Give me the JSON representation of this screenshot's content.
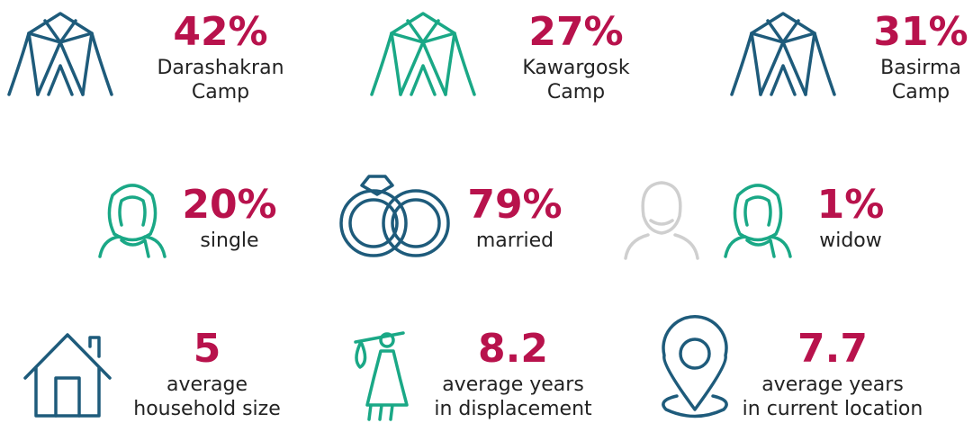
{
  "rows": [
    {
      "items": [
        {
          "value": "42%",
          "label": [
            "Darashakran",
            "Camp"
          ]
        },
        {
          "value": "27%",
          "label": [
            "Kawargosk",
            "Camp"
          ]
        },
        {
          "value": "31%",
          "label": [
            "Basirma",
            "Camp"
          ]
        }
      ]
    },
    {
      "items": [
        {
          "value": "20%",
          "label": [
            "single"
          ]
        },
        {
          "value": "79%",
          "label": [
            "married"
          ]
        },
        {
          "value": "1%",
          "label": [
            "widow"
          ]
        }
      ]
    },
    {
      "items": [
        {
          "value": "5",
          "label": [
            "average",
            "household size"
          ]
        },
        {
          "value": "8.2",
          "label": [
            "average years",
            "in displacement"
          ]
        },
        {
          "value": "7.7",
          "label": [
            "average years",
            "in current location"
          ]
        }
      ]
    }
  ]
}
